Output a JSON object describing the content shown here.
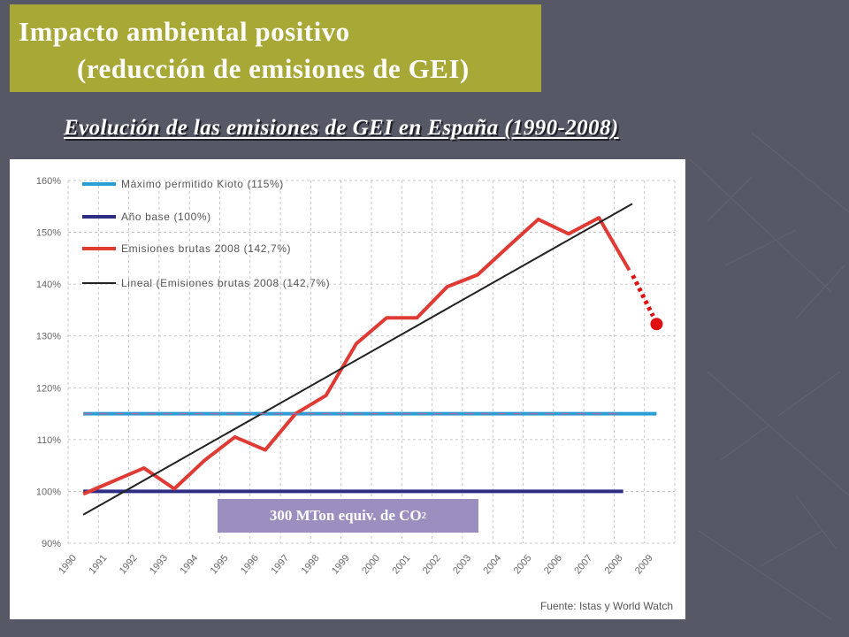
{
  "slide": {
    "title_line1": "Impacto ambiental positivo",
    "title_line2": "(reducción de emisiones de GEI)",
    "subtitle": "Evolución de las emisiones de GEI en España (1990-2008)",
    "annotation_main": "300 MTon equiv. de CO",
    "annotation_sub": "2",
    "source": "Fuente: Istas y World Watch"
  },
  "colors": {
    "background": "#565866",
    "title_box": "#a8a836",
    "kyoto": "#2a9fd6",
    "base": "#2e2d85",
    "emissions": "#e03a35",
    "trend": "#222222",
    "forecast": "#e01010",
    "annotation_box": "#9a8fbf"
  },
  "chart_data": {
    "type": "line",
    "categories": [
      "1990",
      "1991",
      "1992",
      "1993",
      "1994",
      "1995",
      "1996",
      "1997",
      "1998",
      "1999",
      "2000",
      "2001",
      "2002",
      "2003",
      "2004",
      "2005",
      "2006",
      "2007",
      "2008",
      "2009"
    ],
    "ylim": [
      90,
      160
    ],
    "yticks": [
      "90%",
      "100%",
      "110%",
      "120%",
      "130%",
      "140%",
      "150%",
      "160%"
    ],
    "legend_position": "top-left",
    "series": [
      {
        "name": "Máximo permitido Kioto (115%)",
        "kind": "hline",
        "value": 115,
        "x_start": 0.5,
        "x_end": 19.4,
        "color_key": "kyoto"
      },
      {
        "name": "Año base (100%)",
        "kind": "hline",
        "value": 100,
        "x_start": 0.5,
        "x_end": 18.3,
        "color_key": "base"
      },
      {
        "name": "Emisiones brutas 2008 (142,7%)",
        "kind": "line",
        "color_key": "emissions",
        "x": [
          0.5,
          1.5,
          2.5,
          3.5,
          4.5,
          5.5,
          6.5,
          7.5,
          8.5,
          9.5,
          10.5,
          11.5,
          12.5,
          13.5,
          14.5,
          15.5,
          16.5,
          17.5,
          18.5
        ],
        "values": [
          99.5,
          102,
          104.5,
          100.5,
          106,
          110.5,
          108,
          115,
          118.5,
          128.5,
          133.5,
          133.5,
          139.5,
          141.8,
          147.2,
          152.5,
          149.7,
          152.8,
          142.7
        ]
      },
      {
        "name": "Lineal (Emisiones brutas 2008 (142,7%)",
        "kind": "trend",
        "color_key": "trend",
        "x": [
          0.5,
          18.6
        ],
        "values": [
          95.5,
          155.5
        ]
      }
    ],
    "forecast": {
      "from": [
        18.5,
        142.7
      ],
      "to": [
        19.4,
        132.3
      ]
    }
  }
}
